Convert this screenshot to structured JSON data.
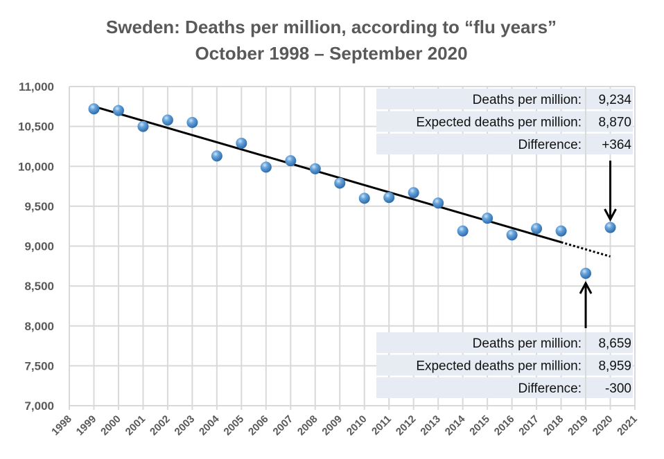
{
  "chart_data": {
    "type": "scatter",
    "title": "Sweden: Deaths per million, according to “flu years”",
    "subtitle": "October 1998 – September 2020",
    "xlabel": "",
    "ylabel": "",
    "xlim": [
      1998,
      2021
    ],
    "ylim": [
      7000,
      11000
    ],
    "x_ticks": [
      "1998",
      "1999",
      "2000",
      "2001",
      "2002",
      "2003",
      "2004",
      "2005",
      "2006",
      "2007",
      "2008",
      "2009",
      "2010",
      "2011",
      "2012",
      "2013",
      "2014",
      "2015",
      "2016",
      "2017",
      "2018",
      "2019",
      "2020",
      "2021"
    ],
    "y_ticks": [
      "7,000",
      "7,500",
      "8,000",
      "8,500",
      "9,000",
      "9,500",
      "10,000",
      "10,500",
      "11,000"
    ],
    "y_tick_values": [
      7000,
      7500,
      8000,
      8500,
      9000,
      9500,
      10000,
      10500,
      11000
    ],
    "grid": true,
    "legend": "none",
    "points": {
      "x": [
        1999,
        2000,
        2001,
        2002,
        2003,
        2004,
        2005,
        2006,
        2007,
        2008,
        2009,
        2010,
        2011,
        2012,
        2013,
        2014,
        2015,
        2016,
        2017,
        2018,
        2019,
        2020
      ],
      "y": [
        10720,
        10700,
        10500,
        10580,
        10550,
        10130,
        10290,
        9990,
        10070,
        9970,
        9790,
        9600,
        9610,
        9670,
        9540,
        9190,
        9350,
        9140,
        9220,
        9190,
        8659,
        9234
      ]
    },
    "trend_line": {
      "solid": {
        "x": [
          1999,
          2018
        ],
        "y": [
          10750,
          9049
        ]
      },
      "dotted": {
        "x": [
          2018,
          2020
        ],
        "y": [
          9049,
          8870
        ]
      }
    },
    "colors": {
      "points": "#4a8fd0",
      "trend": "#000000",
      "grid": "#d9d9d9",
      "box": "#e6ebf4"
    },
    "annotations": [
      {
        "target_year": 2020,
        "rows": [
          {
            "label": "Deaths per million:",
            "value": "9,234"
          },
          {
            "label": "Expected deaths per million:",
            "value": "8,870"
          },
          {
            "label": "Difference:",
            "value": "+364"
          }
        ]
      },
      {
        "target_year": 2019,
        "rows": [
          {
            "label": "Deaths per million:",
            "value": "8,659"
          },
          {
            "label": "Expected deaths per million:",
            "value": "8,959"
          },
          {
            "label": "Difference:",
            "value": "-300"
          }
        ]
      }
    ]
  }
}
